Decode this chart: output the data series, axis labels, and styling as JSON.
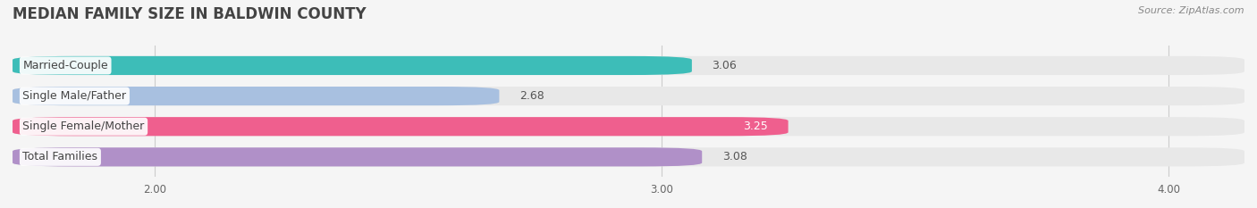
{
  "title": "MEDIAN FAMILY SIZE IN BALDWIN COUNTY",
  "source": "Source: ZipAtlas.com",
  "categories": [
    "Married-Couple",
    "Single Male/Father",
    "Single Female/Mother",
    "Total Families"
  ],
  "values": [
    3.06,
    2.68,
    3.25,
    3.08
  ],
  "bar_colors": [
    "#3dbdb8",
    "#a8c0e0",
    "#ef5f8e",
    "#b090c8"
  ],
  "bg_track_color": "#e8e8e8",
  "bg_color": "#f5f5f5",
  "xlim_left": 1.72,
  "xlim_right": 4.15,
  "xticks": [
    2.0,
    3.0,
    4.0
  ],
  "xtick_labels": [
    "2.00",
    "3.00",
    "4.00"
  ],
  "bar_height": 0.62,
  "label_fontsize": 9.0,
  "value_fontsize": 9.0,
  "title_fontsize": 12,
  "title_color": "#444444",
  "source_color": "#888888",
  "label_text_color": "#444444",
  "value_colors": [
    "#555555",
    "#555555",
    "#ffffff",
    "#555555"
  ],
  "value_inside": [
    false,
    false,
    true,
    false
  ]
}
